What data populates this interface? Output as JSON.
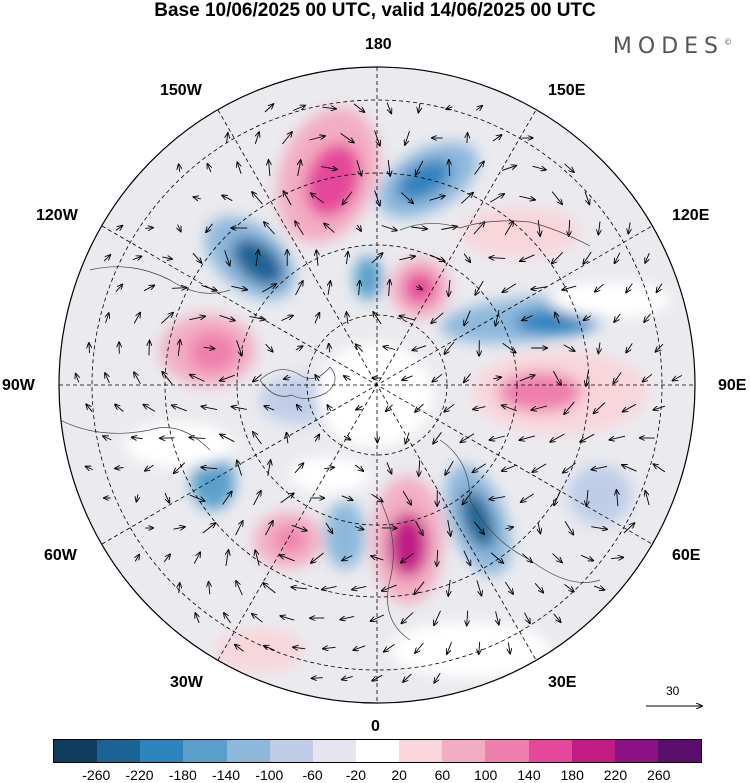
{
  "title": "Base 10/06/2025 00 UTC, valid 14/06/2025 00 UTC",
  "brand": {
    "name": "MODES",
    "mark": "©"
  },
  "lon_labels": [
    "180",
    "150E",
    "120E",
    "90E",
    "60E",
    "30E",
    "0",
    "30W",
    "60W",
    "90W",
    "120W",
    "150W"
  ],
  "reference_vector": {
    "value": "30"
  },
  "colorbar": {
    "ticks": [
      "-260",
      "-220",
      "-180",
      "-140",
      "-100",
      "-60",
      "-20",
      "20",
      "60",
      "100",
      "140",
      "180",
      "220",
      "260"
    ],
    "colors": [
      "#0e3d5e",
      "#1b6394",
      "#2e83bd",
      "#5a9fcb",
      "#8db8dc",
      "#bfcde8",
      "#e6e4f1",
      "#ffffff",
      "#f8d6dc",
      "#f3adc2",
      "#ee7fac",
      "#e5479a",
      "#c21b86",
      "#8b1185",
      "#5a0d6b"
    ]
  },
  "colors": {
    "negative": "#2e83bd",
    "positive": "#e5479a",
    "neutral": "#ffffff"
  },
  "map": {
    "projection": "north-polar-stereographic",
    "grid": "dashed",
    "vectors": "wind"
  }
}
